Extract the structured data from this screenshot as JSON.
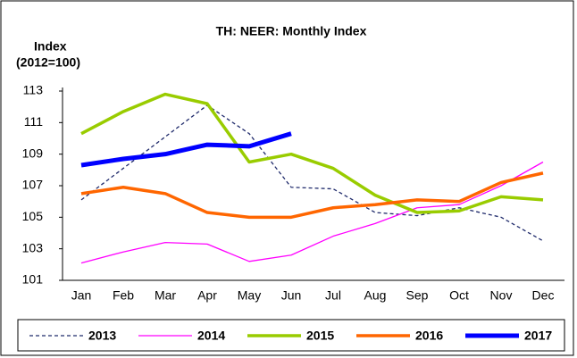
{
  "chart_data": {
    "type": "line",
    "title": "TH: NEER: Monthly Index",
    "y_label": [
      "Index",
      "(2012=100)"
    ],
    "categories": [
      "Jan",
      "Feb",
      "Mar",
      "Apr",
      "May",
      "Jun",
      "Jul",
      "Aug",
      "Sep",
      "Oct",
      "Nov",
      "Dec"
    ],
    "ylim": [
      101,
      113
    ],
    "yticks": [
      101,
      103,
      105,
      107,
      109,
      111,
      113
    ],
    "legend": "bottom",
    "series": [
      {
        "name": "2013",
        "color": "#1f2a6b",
        "width": 1.3,
        "dash": true,
        "values": [
          106.1,
          108.1,
          110.1,
          112.1,
          110.3,
          106.9,
          106.8,
          105.3,
          105.1,
          105.6,
          105.0,
          103.5
        ]
      },
      {
        "name": "2014",
        "color": "#ff00ff",
        "width": 1.3,
        "dash": false,
        "values": [
          102.1,
          102.8,
          103.4,
          103.3,
          102.2,
          102.6,
          103.8,
          104.6,
          105.6,
          105.8,
          107.0,
          108.5
        ]
      },
      {
        "name": "2015",
        "color": "#99cc00",
        "width": 3.5,
        "dash": false,
        "values": [
          110.3,
          111.7,
          112.8,
          112.2,
          108.5,
          109.0,
          108.1,
          106.4,
          105.3,
          105.4,
          106.3,
          106.1
        ]
      },
      {
        "name": "2016",
        "color": "#ff6600",
        "width": 3.5,
        "dash": false,
        "values": [
          106.5,
          106.9,
          106.5,
          105.3,
          105.0,
          105.0,
          105.6,
          105.8,
          106.1,
          106.0,
          107.2,
          107.8
        ]
      },
      {
        "name": "2017",
        "color": "#0000ff",
        "width": 5,
        "dash": false,
        "values": [
          108.3,
          108.7,
          109.0,
          109.6,
          109.5,
          110.3,
          null,
          null,
          null,
          null,
          null,
          null
        ]
      }
    ]
  }
}
